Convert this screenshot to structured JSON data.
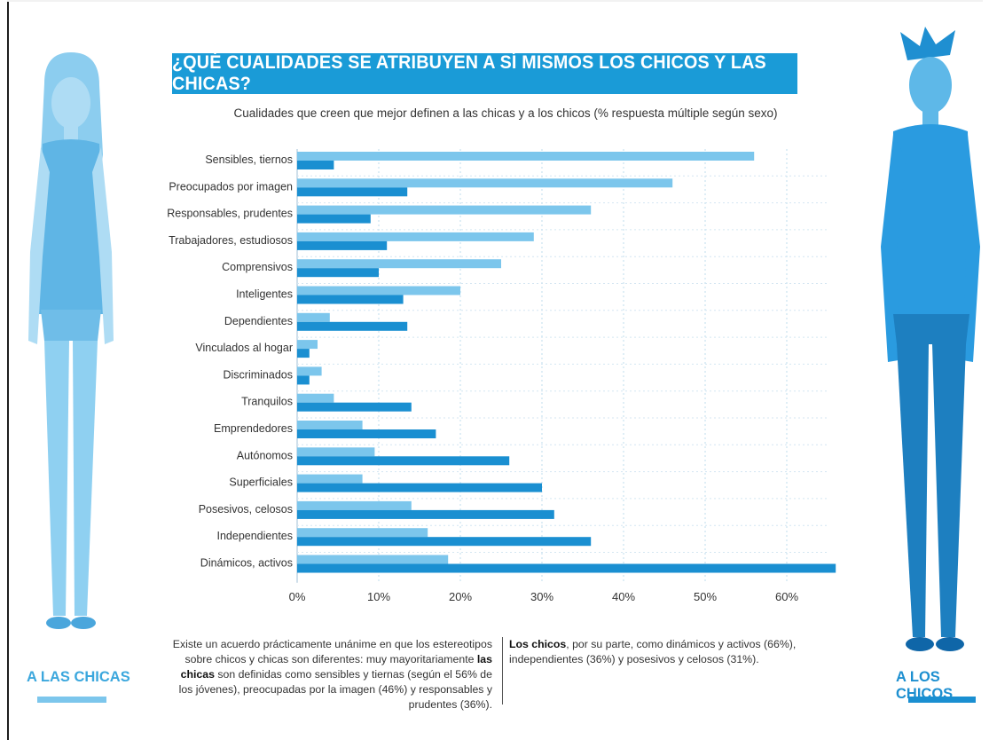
{
  "header": {
    "title": "¿QUÉ CUALIDADES SE ATRIBUYEN A SÍ MISMOS LOS CHICOS Y LAS CHICAS?",
    "subtitle": "Cualidades que creen que mejor definen a las chicas y a los chicos (% respuesta múltiple según sexo)"
  },
  "labels": {
    "left": "A LAS CHICAS",
    "right": "A LOS CHICOS"
  },
  "notes": {
    "left_pre": "Existe un acuerdo prácticamente unánime en que los estereotipos sobre chicos y chicas son diferentes: muy mayoritariamente ",
    "left_bold": "las chicas",
    "left_post": " son definidas como sensibles y tiernas (según el 56% de los jóvenes), preocupadas por la imagen (46%) y responsables y prudentes (36%).",
    "right_bold": "Los chicos",
    "right_post": ", por su parte, como dinámicos y activos (66%), independientes (36%) y posesivos y celosos (31%)."
  },
  "colors": {
    "chicas": "#7cc6ec",
    "chicos": "#1a8fd1",
    "banner": "#1a9bd7"
  },
  "chart_data": {
    "type": "bar",
    "orientation": "horizontal",
    "title": "Cualidades que creen que mejor definen a las chicas y a los chicos (% respuesta múltiple según sexo)",
    "categories": [
      "Sensibles, tiernos",
      "Preocupados por imagen",
      "Responsables, prudentes",
      "Trabajadores, estudiosos",
      "Comprensivos",
      "Inteligentes",
      "Dependientes",
      "Vinculados al hogar",
      "Discriminados",
      "Tranquilos",
      "Emprendedores",
      "Autónomos",
      "Superficiales",
      "Posesivos, celosos",
      "Independientes",
      "Dinámicos, activos"
    ],
    "series": [
      {
        "name": "A LAS CHICAS",
        "values": [
          56,
          46,
          36,
          29,
          25,
          20,
          4,
          2.5,
          3,
          4.5,
          8,
          9.5,
          8,
          14,
          16,
          18.5
        ]
      },
      {
        "name": "A LOS CHICOS",
        "values": [
          4.5,
          13.5,
          9,
          11,
          10,
          13,
          13.5,
          1.5,
          1.5,
          14,
          17,
          26,
          30,
          31.5,
          36,
          66
        ]
      }
    ],
    "xticks": [
      "0%",
      "10%",
      "20%",
      "30%",
      "40%",
      "50%",
      "60%"
    ],
    "xlim": [
      0,
      66
    ],
    "grid": true,
    "legend": "none"
  }
}
